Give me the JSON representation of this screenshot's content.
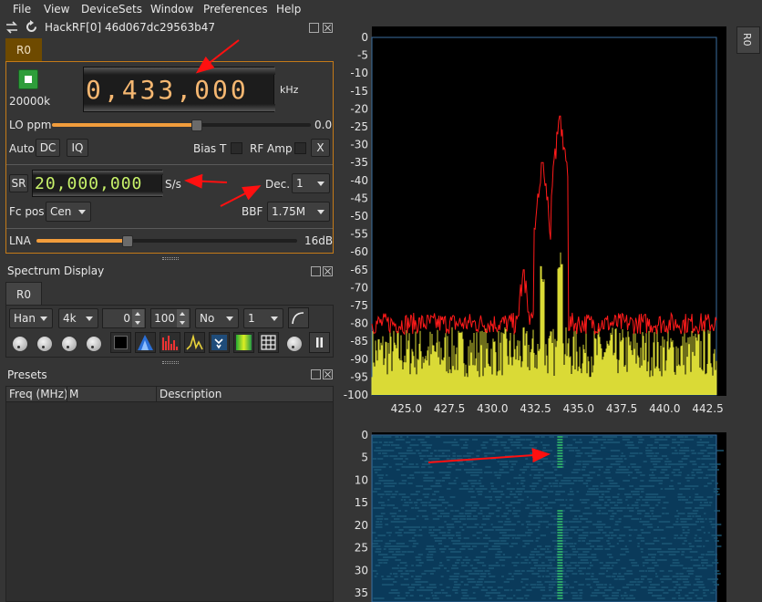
{
  "menu": [
    "File",
    "View",
    "DeviceSets",
    "Window",
    "Preferences",
    "Help"
  ],
  "device": {
    "title": "HackRF[0] 46d067dc29563b47",
    "tab": "R0",
    "sample_rate_label": "20000k",
    "frequency": "0,433,000",
    "freq_unit": "kHz",
    "lo_ppm_label": "LO ppm",
    "lo_ppm_value": "0.0",
    "lo_ppm_fraction": 0.56,
    "auto_label": "Auto",
    "dc_label": "DC",
    "iq_label": "IQ",
    "bias_t_label": "Bias T",
    "rf_amp_label": "RF Amp",
    "x_label": "X",
    "sr_label": "SR",
    "sr_value": "20,000,000",
    "sr_unit": "S/s",
    "dec_label": "Dec.",
    "dec_value": "1",
    "fc_pos_label": "Fc pos",
    "fc_pos_value": "Cen",
    "bbf_label": "BBF",
    "bbf_value": "1.75M",
    "lna_label": "LNA",
    "lna_value": "16dB",
    "lna_fraction": 0.35
  },
  "spectrum_display": {
    "title": "Spectrum Display",
    "tab": "R0",
    "window": "Han",
    "fft_size": "4k",
    "ref": "0",
    "range": "100",
    "overlap": "No",
    "avg": "1"
  },
  "presets": {
    "title": "Presets",
    "columns": [
      "Freq (MHz)",
      "M",
      "Description"
    ]
  },
  "right_tab": "R0",
  "colors": {
    "accent": "#f29d3c",
    "orange_tab": "#6e4a00",
    "trace_red": "#ff1a1a",
    "trace_yellow": "#f2f23c",
    "waterfall": "#0a3a5a"
  },
  "chart_data": [
    {
      "type": "line",
      "title": "",
      "xlabel": "",
      "ylabel": "",
      "x_ticks": [
        "425.0",
        "427.5",
        "430.0",
        "432.5",
        "435.0",
        "437.5",
        "440.0",
        "442.5"
      ],
      "y_ticks": [
        "0",
        "-5",
        "-10",
        "-15",
        "-20",
        "-25",
        "-30",
        "-35",
        "-40",
        "-45",
        "-50",
        "-55",
        "-60",
        "-65",
        "-70",
        "-75",
        "-80",
        "-85",
        "-90",
        "-95",
        "-100"
      ],
      "xlim": [
        423,
        443
      ],
      "ylim": [
        -100,
        0
      ],
      "series": [
        {
          "values_description": "max-hold",
          "noise_floor": -80,
          "peaks": [
            [
              433.92,
              -22
            ],
            [
              432.9,
              -35
            ],
            [
              433.92,
              -50
            ],
            [
              431.8,
              -65
            ]
          ]
        },
        {
          "values_description": "live",
          "noise_floor": -88,
          "peaks": [
            [
              433.92,
              -65
            ],
            [
              432.9,
              -70
            ]
          ]
        }
      ]
    },
    {
      "type": "heatmap",
      "title": "",
      "y_ticks": [
        "0",
        "5",
        "10",
        "15",
        "20",
        "25",
        "30",
        "35"
      ],
      "ylim": [
        0,
        37
      ]
    }
  ]
}
